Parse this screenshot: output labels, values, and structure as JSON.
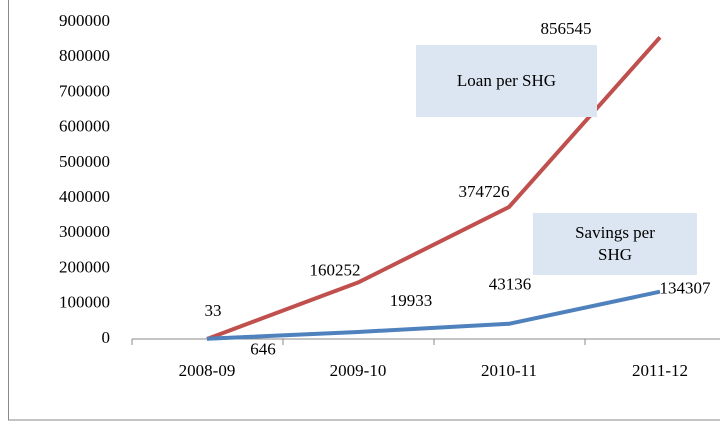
{
  "chart_data": {
    "type": "line",
    "categories": [
      "2008-09",
      "2009-10",
      "2010-11",
      "2011-12"
    ],
    "series": [
      {
        "name": "Loan per SHG",
        "color": "#c0504d",
        "values": [
          33,
          160252,
          374726,
          856545
        ]
      },
      {
        "name": "Savings per SHG",
        "color": "#4f81bd",
        "values": [
          646,
          19933,
          43136,
          134307
        ]
      }
    ],
    "ylim": [
      0,
      900000
    ],
    "yticks": [
      0,
      100000,
      200000,
      300000,
      400000,
      500000,
      600000,
      700000,
      800000,
      900000
    ],
    "grid": false
  }
}
